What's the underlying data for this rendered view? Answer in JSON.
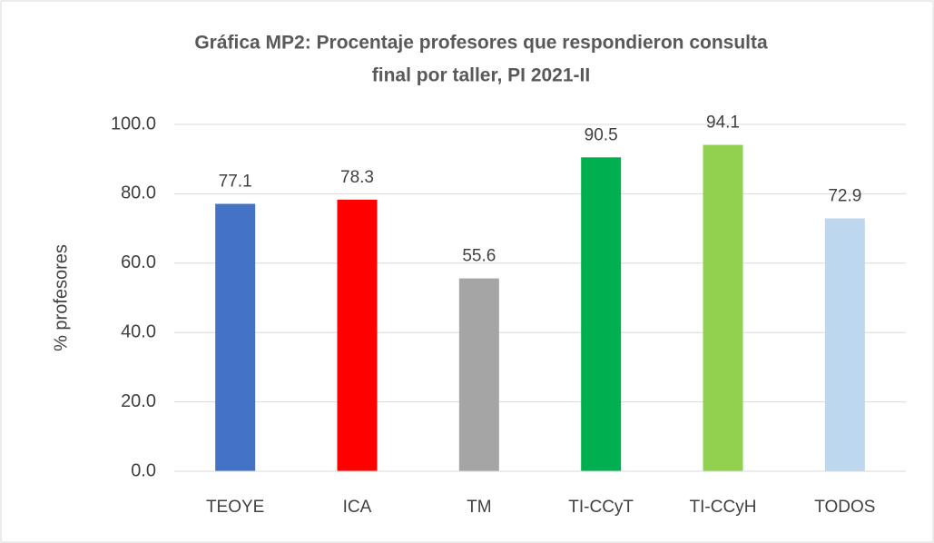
{
  "chart_data": {
    "type": "bar",
    "title": [
      "Gráfica MP2: Procentaje profesores que respondieron consulta",
      "final por taller, PI 2021-II"
    ],
    "ylabel": "% profesores",
    "categories": [
      "TEOYE",
      "ICA",
      "TM",
      "TI-CCyT",
      "TI-CCyH",
      "TODOS"
    ],
    "values": [
      77.1,
      78.3,
      55.6,
      90.5,
      94.1,
      72.9
    ],
    "colors": [
      "#4472c4",
      "#ff0000",
      "#a5a5a5",
      "#00b050",
      "#92d050",
      "#bdd7ee"
    ],
    "ylim": [
      0,
      100
    ],
    "yticks": [
      {
        "value": 0,
        "label": "0.0"
      },
      {
        "value": 20,
        "label": "20.0"
      },
      {
        "value": 40,
        "label": "40.0"
      },
      {
        "value": 60,
        "label": "60.0"
      },
      {
        "value": 80,
        "label": "80.0"
      },
      {
        "value": 100,
        "label": "100.0"
      }
    ],
    "grid": true
  }
}
